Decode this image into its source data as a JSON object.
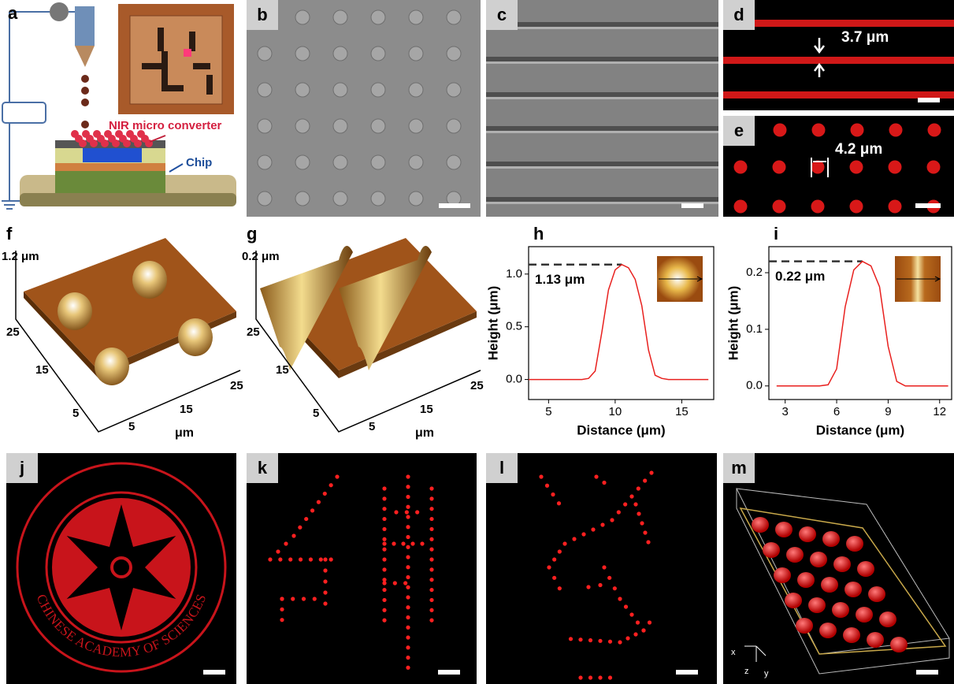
{
  "panels": {
    "a": {
      "label": "a",
      "converter_label": "NIR micro converter",
      "chip_label": "Chip"
    },
    "b": {
      "label": "b"
    },
    "c": {
      "label": "c"
    },
    "d": {
      "label": "d",
      "width_label": "3.7 μm"
    },
    "e": {
      "label": "e",
      "pitch_label": "4.2 μm"
    },
    "f": {
      "label": "f",
      "z_label": "1.2 μm",
      "y_ticks": [
        25,
        15,
        5
      ],
      "x_ticks": [
        5,
        15,
        25
      ],
      "unit": "μm"
    },
    "g": {
      "label": "g",
      "z_label": "0.2 μm",
      "y_ticks": [
        25,
        15,
        5
      ],
      "x_ticks": [
        5,
        15,
        25
      ],
      "unit": "μm"
    },
    "j": {
      "label": "j",
      "ring_text": "CHINESE ACADEMY OF SCIENCES"
    },
    "k": {
      "label": "k"
    },
    "l": {
      "label": "l"
    },
    "m": {
      "label": "m",
      "axes": [
        "x",
        "z",
        "y"
      ]
    }
  },
  "chart_data": [
    {
      "type": "line",
      "label": "h",
      "annotation": "1.13 μm",
      "x_label": "Distance (μm)",
      "y_label": "Height (μm)",
      "x": [
        3.5,
        4,
        4.5,
        5,
        5.5,
        6,
        6.5,
        7,
        7.5,
        8,
        8.5,
        9,
        9.5,
        10,
        10.5,
        11,
        11.5,
        12,
        12.5,
        13,
        13.5,
        14,
        14.5,
        15,
        15.5,
        16,
        16.5,
        17
      ],
      "values": [
        0,
        0,
        0,
        0,
        0,
        0,
        0,
        0,
        0,
        0.01,
        0.08,
        0.45,
        0.85,
        1.04,
        1.09,
        1.06,
        0.95,
        0.7,
        0.28,
        0.04,
        0.01,
        0,
        0,
        0,
        0,
        0,
        0,
        0
      ],
      "color": "#e8201e",
      "xlim": [
        3.5,
        17.4
      ],
      "ylim": [
        -0.19,
        1.26
      ],
      "xticks": [
        5,
        10,
        15
      ],
      "yticks": [
        {
          "value": 0,
          "label": "0.0"
        },
        {
          "value": 0.5,
          "label": "0.5"
        },
        {
          "value": 1,
          "label": "1.0"
        }
      ]
    },
    {
      "type": "line",
      "label": "i",
      "annotation": "0.22 μm",
      "x_label": "Distance (μm)",
      "y_label": "Height (μm)",
      "x": [
        2.5,
        3,
        3.5,
        4,
        4.5,
        5,
        5.5,
        6,
        6.5,
        7,
        7.5,
        8,
        8.5,
        9,
        9.5,
        10,
        10.5,
        11,
        11.5,
        12,
        12.5
      ],
      "values": [
        0,
        0,
        0,
        0,
        0,
        0,
        0.002,
        0.03,
        0.14,
        0.205,
        0.22,
        0.212,
        0.175,
        0.07,
        0.008,
        0,
        0,
        0,
        0,
        0,
        0
      ],
      "color": "#e8201e",
      "xlim": [
        2.05,
        12.7
      ],
      "ylim": [
        -0.024,
        0.246
      ],
      "xticks": [
        3,
        6,
        9,
        12
      ],
      "yticks": [
        {
          "value": 0,
          "label": "0.0"
        },
        {
          "value": 0.1,
          "label": "0.1"
        },
        {
          "value": 0.2,
          "label": "0.2"
        }
      ]
    }
  ]
}
